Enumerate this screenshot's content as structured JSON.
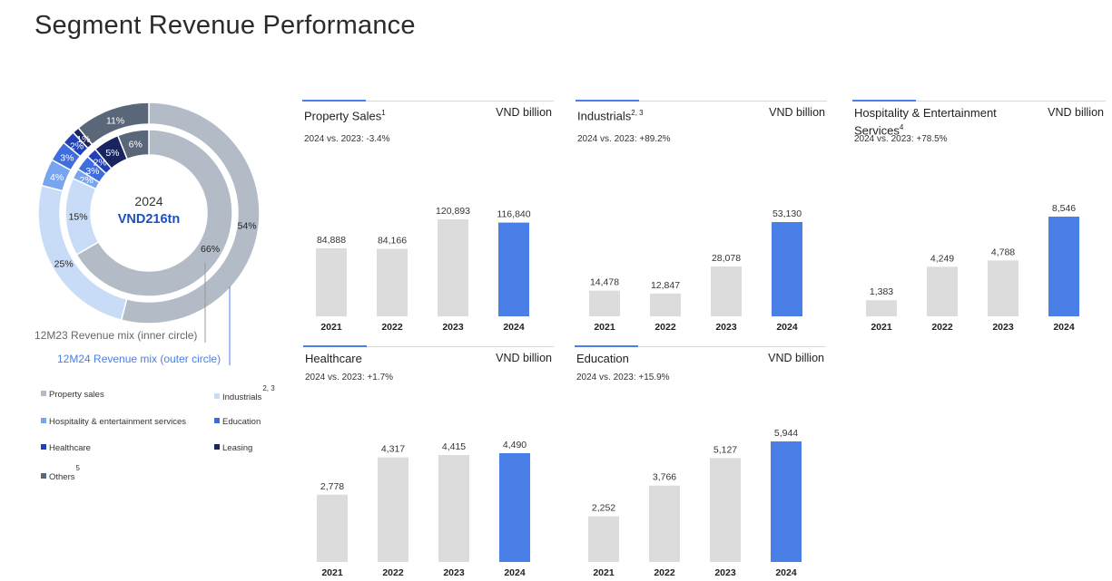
{
  "page": {
    "title": "Segment Revenue Performance"
  },
  "donut": {
    "center_year": "2024",
    "center_value": "VND216tn",
    "inner_label": "12M23 Revenue mix (inner circle)",
    "outer_label": "12M24 Revenue mix (outer circle)",
    "colors": {
      "Property sales": "#b3bcc6",
      "Industrials": "#c9dcf7",
      "Hospitality & entertainment services": "#79a5ee",
      "Education": "#3f6ddd",
      "Healthcare": "#2240b5",
      "Leasing": "#1a2560",
      "Others": "#5a6778"
    }
  },
  "legend": [
    {
      "label": "Property sales",
      "sup": ""
    },
    {
      "label": "Industrials",
      "sup": "2, 3"
    },
    {
      "label": "Hospitality & entertainment services",
      "sup": ""
    },
    {
      "label": "Education",
      "sup": ""
    },
    {
      "label": "Healthcare",
      "sup": ""
    },
    {
      "label": "Leasing",
      "sup": ""
    },
    {
      "label": "Others",
      "sup": "5"
    }
  ],
  "panels": [
    {
      "title": "Property Sales",
      "sup": "1",
      "unit": "VND billion",
      "yoy": "2024 vs. 2023: -3.4%"
    },
    {
      "title": "Industrials",
      "sup": "2, 3",
      "unit": "VND billion",
      "yoy": "2024 vs. 2023: +89.2%"
    },
    {
      "title": "Hospitality & Entertainment Services",
      "sup": "4",
      "unit": "VND billion",
      "yoy": "2024 vs. 2023: +78.5%"
    },
    {
      "title": "Healthcare",
      "sup": "",
      "unit": "VND billion",
      "yoy": "2024 vs. 2023: +1.7%"
    },
    {
      "title": "Education",
      "sup": "",
      "unit": "VND billion",
      "yoy": "2024 vs. 2023: +15.9%"
    }
  ],
  "chart_data": [
    {
      "type": "pie",
      "subtype": "donut-inner",
      "title": "12M23 Revenue mix (inner circle)",
      "categories": [
        "Property sales",
        "Industrials",
        "Hospitality & entertainment services",
        "Education",
        "Healthcare",
        "Leasing",
        "Others"
      ],
      "values": [
        66,
        15,
        2,
        3,
        2,
        5,
        6
      ],
      "labels": [
        "66%",
        "15%",
        "2%",
        "3%",
        "2%",
        "5%",
        "6%"
      ]
    },
    {
      "type": "pie",
      "subtype": "donut-outer",
      "title": "12M24 Revenue mix (outer circle)",
      "categories": [
        "Property sales",
        "Industrials",
        "Hospitality & entertainment services",
        "Education",
        "Healthcare",
        "Leasing",
        "Others"
      ],
      "values": [
        54,
        25,
        4,
        3,
        2,
        1,
        11
      ],
      "labels": [
        "54%",
        "25%",
        "4%",
        "3%",
        "2%",
        "1%",
        "11%"
      ]
    },
    {
      "type": "bar",
      "title": "Property Sales",
      "categories": [
        "2021",
        "2022",
        "2023",
        "2024"
      ],
      "values": [
        84888,
        84166,
        120893,
        116840
      ],
      "value_labels": [
        "84,888",
        "84,166",
        "120,893",
        "116,840"
      ]
    },
    {
      "type": "bar",
      "title": "Industrials",
      "categories": [
        "2021",
        "2022",
        "2023",
        "2024"
      ],
      "values": [
        14478,
        12847,
        28078,
        53130
      ],
      "value_labels": [
        "14,478",
        "12,847",
        "28,078",
        "53,130"
      ]
    },
    {
      "type": "bar",
      "title": "Hospitality & Entertainment Services",
      "categories": [
        "2021",
        "2022",
        "2023",
        "2024"
      ],
      "values": [
        1383,
        4249,
        4788,
        8546
      ],
      "value_labels": [
        "1,383",
        "4,249",
        "4,788",
        "8,546"
      ]
    },
    {
      "type": "bar",
      "title": "Healthcare",
      "categories": [
        "2021",
        "2022",
        "2023",
        "2024"
      ],
      "values": [
        2778,
        4317,
        4415,
        4490
      ],
      "value_labels": [
        "2,778",
        "4,317",
        "4,415",
        "4,490"
      ]
    },
    {
      "type": "bar",
      "title": "Education",
      "categories": [
        "2021",
        "2022",
        "2023",
        "2024"
      ],
      "values": [
        2252,
        3766,
        5127,
        5944
      ],
      "value_labels": [
        "2,252",
        "3,766",
        "5,127",
        "5,944"
      ]
    }
  ],
  "colors": {
    "bar_gray": "#dcdcdc",
    "bar_highlight": "#4a7fe8",
    "inner_label_color": "#666666",
    "outer_label_color": "#4a7fe8"
  }
}
